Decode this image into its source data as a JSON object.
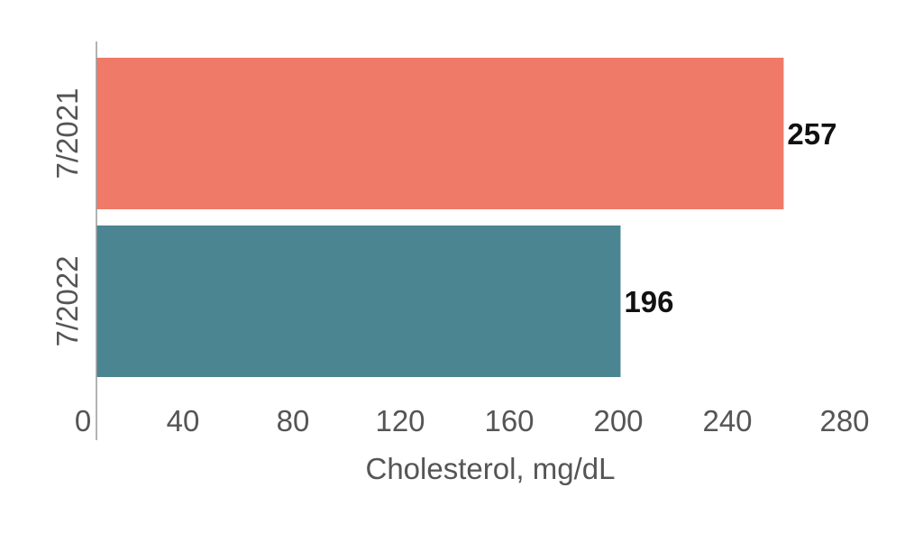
{
  "chart_data": {
    "type": "bar",
    "orientation": "horizontal",
    "categories": [
      "7/2021",
      "7/2022"
    ],
    "values": [
      257,
      196
    ],
    "data_labels": [
      "257",
      "196"
    ],
    "bar_colors": [
      "#f07a68",
      "#4c8592"
    ],
    "xlabel": "Cholesterol, mg/dL",
    "ylabel": "",
    "xlim": [
      0,
      280
    ],
    "x_ticks": [
      "0",
      "40",
      "80",
      "120",
      "160",
      "200",
      "240",
      "280"
    ],
    "grid": false,
    "legend": "none"
  }
}
